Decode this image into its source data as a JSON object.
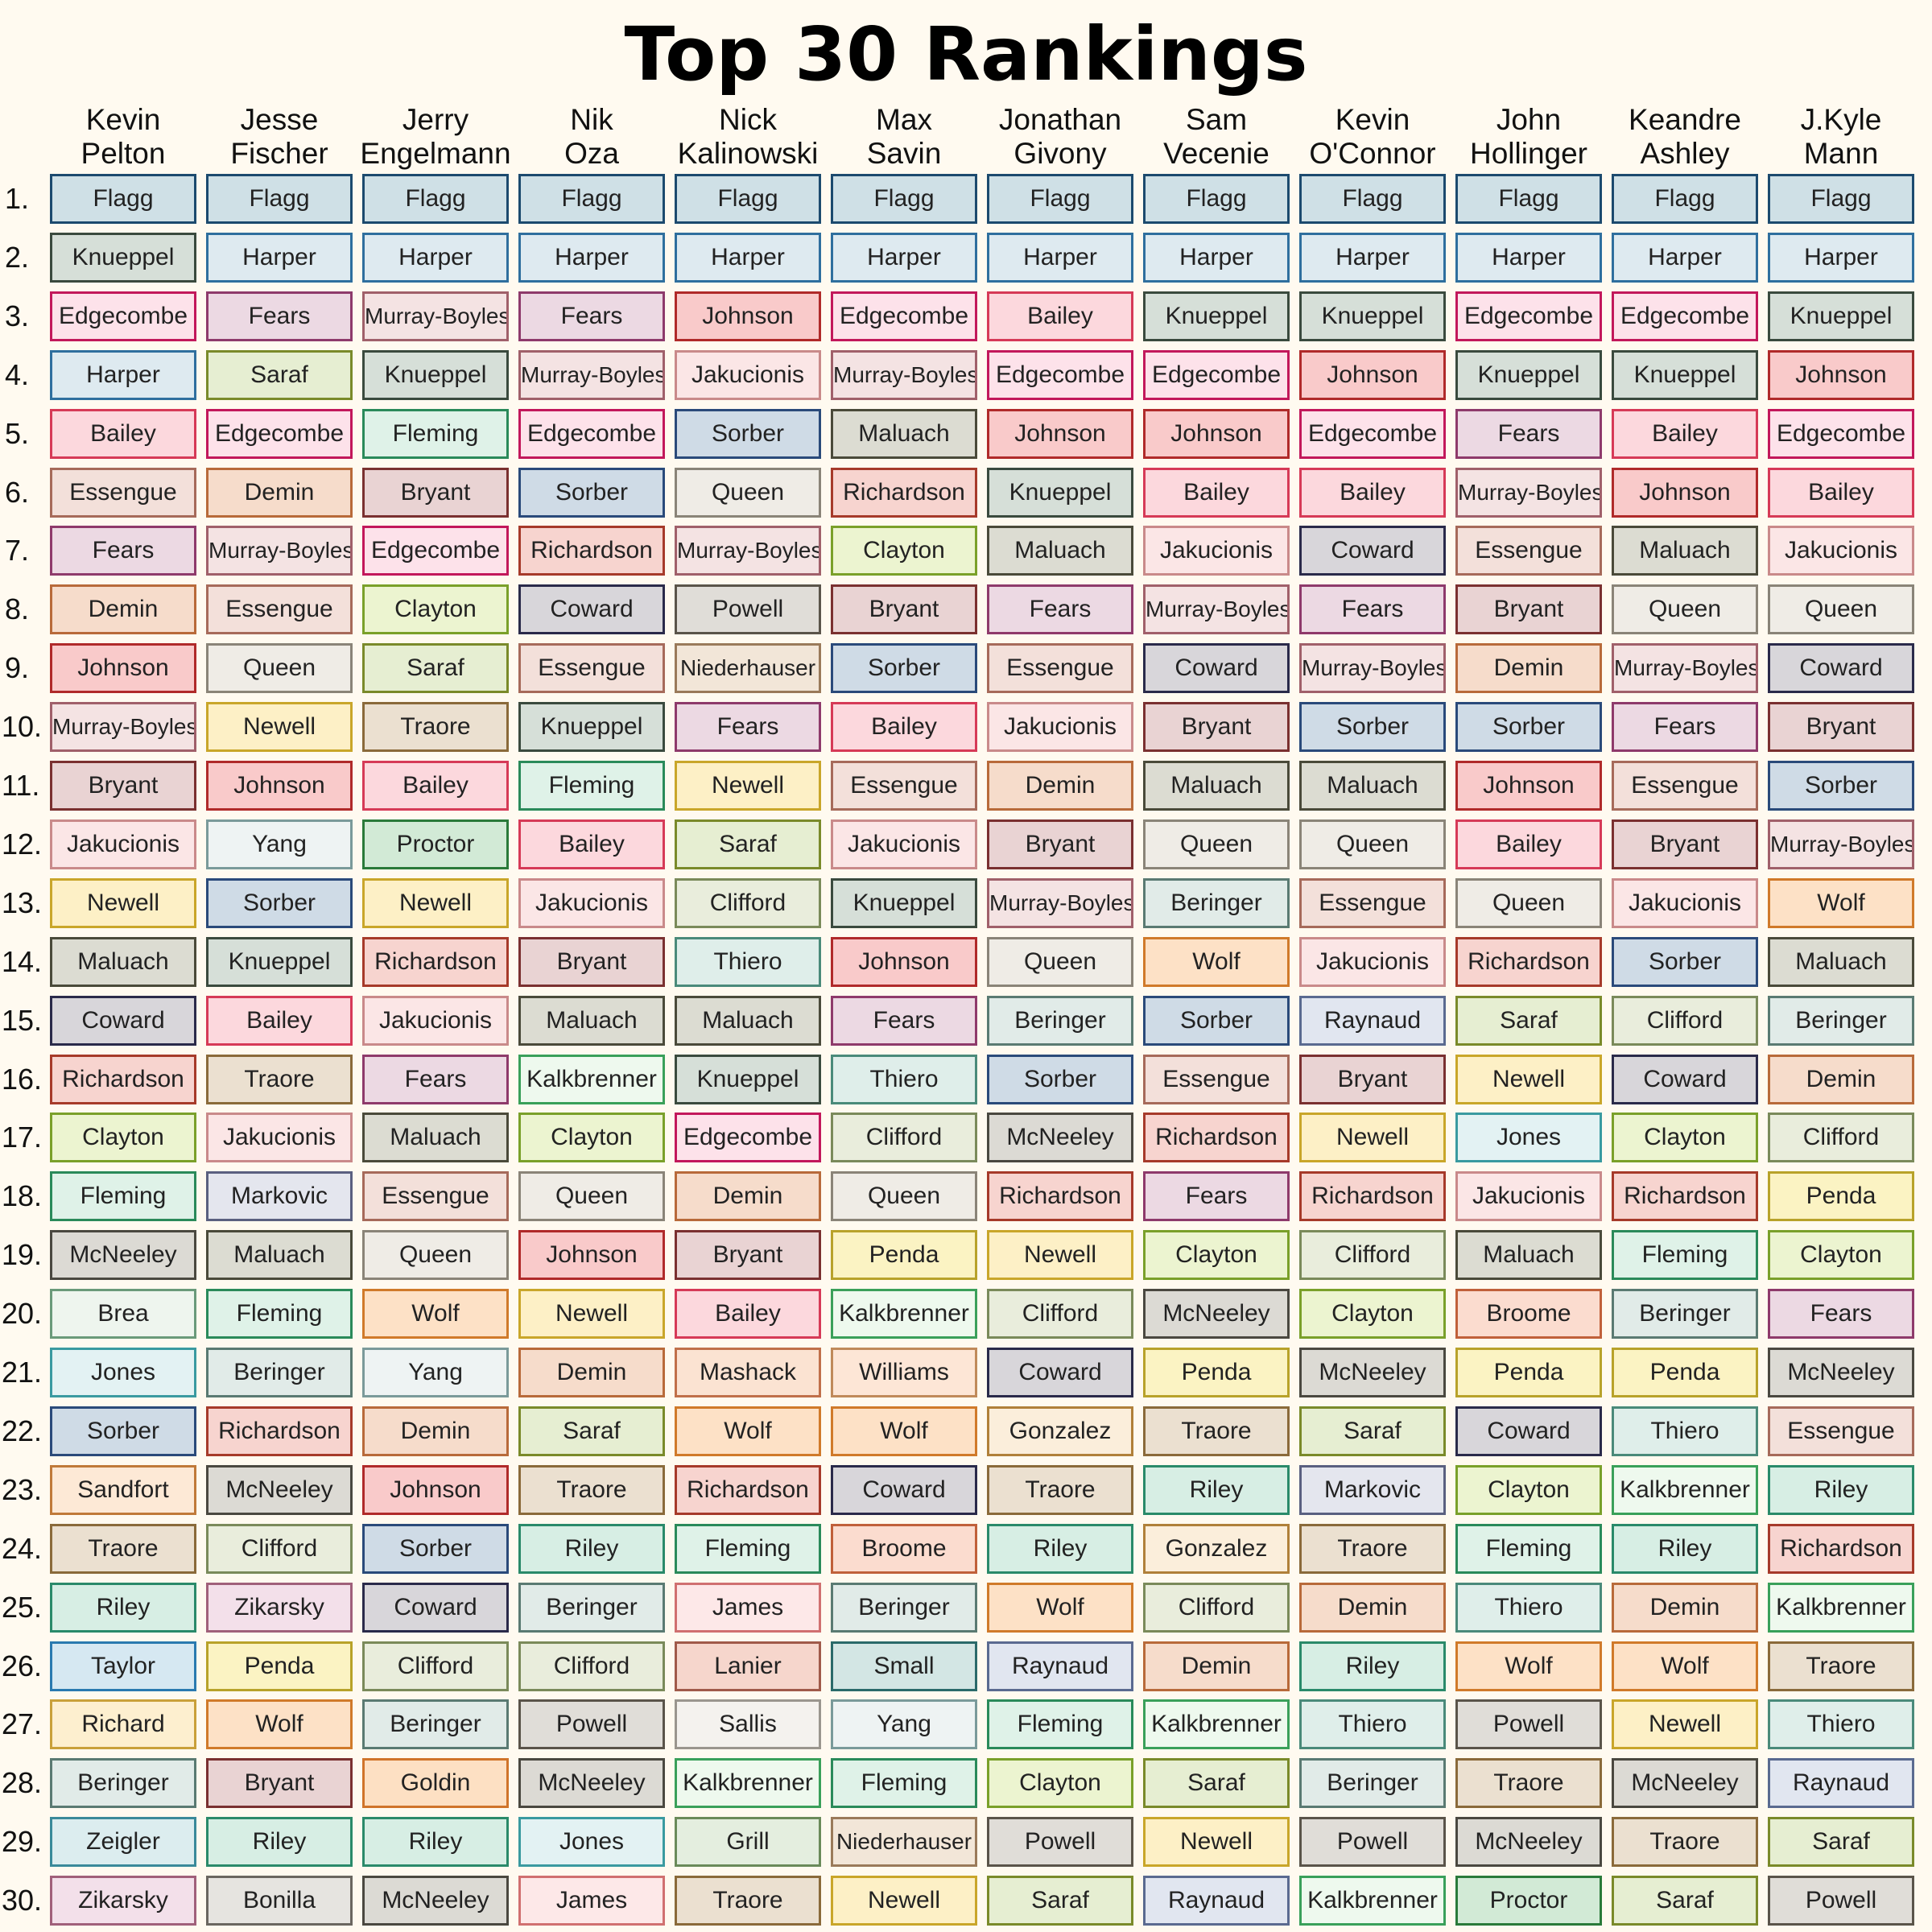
{
  "chart_data": {
    "type": "table",
    "title": "Top 30 Rankings",
    "rank_labels": [
      "1.",
      "2.",
      "3.",
      "4.",
      "5.",
      "6.",
      "7.",
      "8.",
      "9.",
      "10.",
      "11.",
      "12.",
      "13.",
      "14.",
      "15.",
      "16.",
      "17.",
      "18.",
      "19.",
      "20.",
      "21.",
      "22.",
      "23.",
      "24.",
      "25.",
      "26.",
      "27.",
      "28.",
      "29.",
      "30."
    ],
    "columns": [
      {
        "first": "Kevin",
        "last": "Pelton",
        "rankings": [
          "Flagg",
          "Knueppel",
          "Edgecombe",
          "Harper",
          "Bailey",
          "Essengue",
          "Fears",
          "Demin",
          "Johnson",
          "Murray-Boyles",
          "Bryant",
          "Jakucionis",
          "Newell",
          "Maluach",
          "Coward",
          "Richardson",
          "Clayton",
          "Fleming",
          "McNeeley",
          "Brea",
          "Jones",
          "Sorber",
          "Sandfort",
          "Traore",
          "Riley",
          "Taylor",
          "Richard",
          "Beringer",
          "Zeigler",
          "Zikarsky"
        ]
      },
      {
        "first": "Jesse",
        "last": "Fischer",
        "rankings": [
          "Flagg",
          "Harper",
          "Fears",
          "Saraf",
          "Edgecombe",
          "Demin",
          "Murray-Boyles",
          "Essengue",
          "Queen",
          "Newell",
          "Johnson",
          "Yang",
          "Sorber",
          "Knueppel",
          "Bailey",
          "Traore",
          "Jakucionis",
          "Markovic",
          "Maluach",
          "Fleming",
          "Beringer",
          "Richardson",
          "McNeeley",
          "Clifford",
          "Zikarsky",
          "Penda",
          "Wolf",
          "Bryant",
          "Riley",
          "Bonilla"
        ]
      },
      {
        "first": "Jerry",
        "last": "Engelmann",
        "rankings": [
          "Flagg",
          "Harper",
          "Murray-Boyles",
          "Knueppel",
          "Fleming",
          "Bryant",
          "Edgecombe",
          "Clayton",
          "Saraf",
          "Traore",
          "Bailey",
          "Proctor",
          "Newell",
          "Richardson",
          "Jakucionis",
          "Fears",
          "Maluach",
          "Essengue",
          "Queen",
          "Wolf",
          "Yang",
          "Demin",
          "Johnson",
          "Sorber",
          "Coward",
          "Clifford",
          "Beringer",
          "Goldin",
          "Riley",
          "McNeeley"
        ]
      },
      {
        "first": "Nik",
        "last": "Oza",
        "rankings": [
          "Flagg",
          "Harper",
          "Fears",
          "Murray-Boyles",
          "Edgecombe",
          "Sorber",
          "Richardson",
          "Coward",
          "Essengue",
          "Knueppel",
          "Fleming",
          "Bailey",
          "Jakucionis",
          "Bryant",
          "Maluach",
          "Kalkbrenner",
          "Clayton",
          "Queen",
          "Johnson",
          "Newell",
          "Demin",
          "Saraf",
          "Traore",
          "Riley",
          "Beringer",
          "Clifford",
          "Powell",
          "McNeeley",
          "Jones",
          "James"
        ]
      },
      {
        "first": "Nick",
        "last": "Kalinowski",
        "rankings": [
          "Flagg",
          "Harper",
          "Johnson",
          "Jakucionis",
          "Sorber",
          "Queen",
          "Murray-Boyles",
          "Powell",
          "Niederhauser",
          "Fears",
          "Newell",
          "Saraf",
          "Clifford",
          "Thiero",
          "Maluach",
          "Knueppel",
          "Edgecombe",
          "Demin",
          "Bryant",
          "Bailey",
          "Mashack",
          "Wolf",
          "Richardson",
          "Fleming",
          "James",
          "Lanier",
          "Sallis",
          "Kalkbrenner",
          "Grill",
          "Traore"
        ]
      },
      {
        "first": "Max",
        "last": "Savin",
        "rankings": [
          "Flagg",
          "Harper",
          "Edgecombe",
          "Murray-Boyles",
          "Maluach",
          "Richardson",
          "Clayton",
          "Bryant",
          "Sorber",
          "Bailey",
          "Essengue",
          "Jakucionis",
          "Knueppel",
          "Johnson",
          "Fears",
          "Thiero",
          "Clifford",
          "Queen",
          "Penda",
          "Kalkbrenner",
          "Williams",
          "Wolf",
          "Coward",
          "Broome",
          "Beringer",
          "Small",
          "Yang",
          "Fleming",
          "Niederhauser",
          "Newell"
        ]
      },
      {
        "first": "Jonathan",
        "last": "Givony",
        "rankings": [
          "Flagg",
          "Harper",
          "Bailey",
          "Edgecombe",
          "Johnson",
          "Knueppel",
          "Maluach",
          "Fears",
          "Essengue",
          "Jakucionis",
          "Demin",
          "Bryant",
          "Murray-Boyles",
          "Queen",
          "Beringer",
          "Sorber",
          "McNeeley",
          "Richardson",
          "Newell",
          "Clifford",
          "Coward",
          "Gonzalez",
          "Traore",
          "Riley",
          "Wolf",
          "Raynaud",
          "Fleming",
          "Clayton",
          "Powell",
          "Saraf"
        ]
      },
      {
        "first": "Sam",
        "last": "Vecenie",
        "rankings": [
          "Flagg",
          "Harper",
          "Knueppel",
          "Edgecombe",
          "Johnson",
          "Bailey",
          "Jakucionis",
          "Murray-Boyles",
          "Coward",
          "Bryant",
          "Maluach",
          "Queen",
          "Beringer",
          "Wolf",
          "Sorber",
          "Essengue",
          "Richardson",
          "Fears",
          "Clayton",
          "McNeeley",
          "Penda",
          "Traore",
          "Riley",
          "Gonzalez",
          "Clifford",
          "Demin",
          "Kalkbrenner",
          "Saraf",
          "Newell",
          "Raynaud"
        ]
      },
      {
        "first": "Kevin",
        "last": "O'Connor",
        "rankings": [
          "Flagg",
          "Harper",
          "Knueppel",
          "Johnson",
          "Edgecombe",
          "Bailey",
          "Coward",
          "Fears",
          "Murray-Boyles",
          "Sorber",
          "Maluach",
          "Queen",
          "Essengue",
          "Jakucionis",
          "Raynaud",
          "Bryant",
          "Newell",
          "Richardson",
          "Clifford",
          "Clayton",
          "McNeeley",
          "Saraf",
          "Markovic",
          "Traore",
          "Demin",
          "Riley",
          "Thiero",
          "Beringer",
          "Powell",
          "Kalkbrenner"
        ]
      },
      {
        "first": "John",
        "last": "Hollinger",
        "rankings": [
          "Flagg",
          "Harper",
          "Edgecombe",
          "Knueppel",
          "Fears",
          "Murray-Boyles",
          "Essengue",
          "Bryant",
          "Demin",
          "Sorber",
          "Johnson",
          "Bailey",
          "Queen",
          "Richardson",
          "Saraf",
          "Newell",
          "Jones",
          "Jakucionis",
          "Maluach",
          "Broome",
          "Penda",
          "Coward",
          "Clayton",
          "Fleming",
          "Thiero",
          "Wolf",
          "Powell",
          "Traore",
          "McNeeley",
          "Proctor"
        ]
      },
      {
        "first": "Keandre",
        "last": "Ashley",
        "rankings": [
          "Flagg",
          "Harper",
          "Edgecombe",
          "Knueppel",
          "Bailey",
          "Johnson",
          "Maluach",
          "Queen",
          "Murray-Boyles",
          "Fears",
          "Essengue",
          "Bryant",
          "Jakucionis",
          "Sorber",
          "Clifford",
          "Coward",
          "Clayton",
          "Richardson",
          "Fleming",
          "Beringer",
          "Penda",
          "Thiero",
          "Kalkbrenner",
          "Riley",
          "Demin",
          "Wolf",
          "Newell",
          "McNeeley",
          "Traore",
          "Saraf"
        ]
      },
      {
        "first": "J.Kyle",
        "last": "Mann",
        "rankings": [
          "Flagg",
          "Harper",
          "Knueppel",
          "Johnson",
          "Edgecombe",
          "Bailey",
          "Jakucionis",
          "Queen",
          "Coward",
          "Bryant",
          "Sorber",
          "Murray-Boyles",
          "Wolf",
          "Maluach",
          "Beringer",
          "Demin",
          "Clifford",
          "Penda",
          "Clayton",
          "Fears",
          "McNeeley",
          "Essengue",
          "Riley",
          "Richardson",
          "Kalkbrenner",
          "Traore",
          "Thiero",
          "Raynaud",
          "Saraf",
          "Powell"
        ]
      }
    ]
  },
  "player_colors": {
    "Flagg": [
      "#cfe0e6",
      "#1c4a6e"
    ],
    "Harper": [
      "#deeaf0",
      "#2f6f9e"
    ],
    "Knueppel": [
      "#d6dfd8",
      "#3a4a3e"
    ],
    "Edgecombe": [
      "#fde2ea",
      "#c2185b"
    ],
    "Fears": [
      "#ecd9e3",
      "#8e3a6b"
    ],
    "Murray-Boyles": [
      "#f4e3e3",
      "#a0606a"
    ],
    "Johnson": [
      "#f9caca",
      "#b02a2a"
    ],
    "Bailey": [
      "#fcd8dd",
      "#d63a57"
    ],
    "Saraf": [
      "#e6eed2",
      "#7a8a2a"
    ],
    "Jakucionis": [
      "#fbe6e6",
      "#c98a8a"
    ],
    "Sorber": [
      "#cfdbe6",
      "#2a4a7a"
    ],
    "Maluach": [
      "#dcdcd2",
      "#4a4a3a"
    ],
    "Essengue": [
      "#f3e0da",
      "#a66a5a"
    ],
    "Demin": [
      "#f6dccb",
      "#b86a3a"
    ],
    "Fleming": [
      "#dff2e8",
      "#2a8a5a"
    ],
    "Bryant": [
      "#e9d3d3",
      "#7a3030"
    ],
    "Queen": [
      "#efece6",
      "#8a8478"
    ],
    "Richardson": [
      "#f7d4cf",
      "#a63a2a"
    ],
    "Clayton": [
      "#ecf4d0",
      "#7aa02a"
    ],
    "Coward": [
      "#d8d6da",
      "#2a2a4a"
    ],
    "Powell": [
      "#e0ddd8",
      "#5a544a"
    ],
    "Niederhauser": [
      "#f2e6d8",
      "#9a7a5a"
    ],
    "Newell": [
      "#fdf0c6",
      "#c9a62a"
    ],
    "Traore": [
      "#ebe0d0",
      "#8a6a3a"
    ],
    "Yang": [
      "#eef3f3",
      "#7a9a9a"
    ],
    "Proctor": [
      "#d2ead6",
      "#2a7a3a"
    ],
    "Clifford": [
      "#e9eddc",
      "#7a8a5a"
    ],
    "Thiero": [
      "#dfeeea",
      "#4a8a7a"
    ],
    "Beringer": [
      "#e1ebe8",
      "#5a7a72"
    ],
    "Kalkbrenner": [
      "#eef9ee",
      "#3aa05a"
    ],
    "McNeeley": [
      "#dcdad4",
      "#4a4840"
    ],
    "Penda": [
      "#fbf3c3",
      "#b8a22a"
    ],
    "Wolf": [
      "#fde1c6",
      "#d07a2a"
    ],
    "Markovic": [
      "#e4e6ee",
      "#5a6080"
    ],
    "Raynaud": [
      "#e1e6f0",
      "#5a6a90"
    ],
    "Riley": [
      "#d7eee4",
      "#2a8a6a"
    ],
    "Gonzalez": [
      "#fbeedb",
      "#b0803a"
    ],
    "Zikarsky": [
      "#f3e0ea",
      "#a0607a"
    ],
    "Brea": [
      "#eef5ee",
      "#6a9a7a"
    ],
    "Jones": [
      "#e3f2f3",
      "#3a9aa0"
    ],
    "Sandfort": [
      "#fde9d6",
      "#c07a3a"
    ],
    "Taylor": [
      "#d6e8f2",
      "#2a7ab0"
    ],
    "Richard": [
      "#fdefcf",
      "#c9a03a"
    ],
    "Zeigler": [
      "#dcedef",
      "#3a8a9a"
    ],
    "Bonilla": [
      "#e6e4e0",
      "#6a6660"
    ],
    "Goldin": [
      "#fde0c3",
      "#d0742a"
    ],
    "Broome": [
      "#fbdccf",
      "#c0603a"
    ],
    "James": [
      "#fde8e8",
      "#d07070"
    ],
    "Mashack": [
      "#fbe3d2",
      "#c0704a"
    ],
    "Lanier": [
      "#f6d6cc",
      "#a05a4a"
    ],
    "Sallis": [
      "#f4f2ee",
      "#9a968e"
    ],
    "Grill": [
      "#e4eedf",
      "#6a8a5a"
    ],
    "Williams": [
      "#fde6d6",
      "#c08a5a"
    ],
    "Small": [
      "#d3e6e4",
      "#2a6a6a"
    ]
  }
}
